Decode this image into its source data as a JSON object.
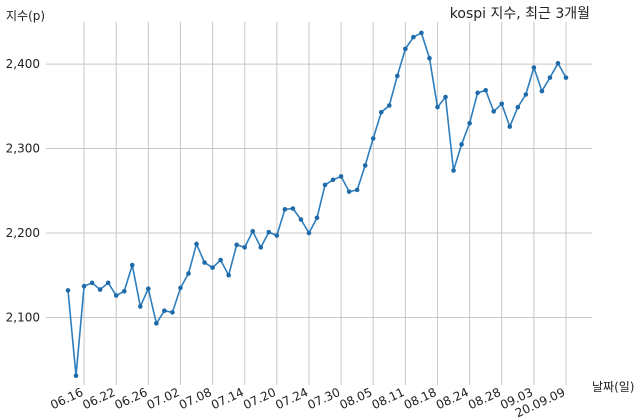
{
  "chart_data": {
    "type": "line",
    "title": "kospi 지수, 최근 3개월",
    "ylabel": "지수(p)",
    "xlabel": "날짜(일)",
    "ylim": [
      2020,
      2470
    ],
    "yticks": [
      2100,
      2200,
      2300,
      2400
    ],
    "ytick_labels": [
      "2,100",
      "2,200",
      "2,300",
      "2,400"
    ],
    "grid": true,
    "series": [
      {
        "color": "#2e7ebd",
        "values": [
          2132,
          2031,
          2137,
          2141,
          2133,
          2141,
          2126,
          2131,
          2162,
          2113,
          2134,
          2093,
          2108,
          2106,
          2135,
          2152,
          2187,
          2165,
          2159,
          2168,
          2150,
          2186,
          2183,
          2202,
          2183,
          2201,
          2197,
          2228,
          2229,
          2216,
          2200,
          2218,
          2257,
          2263,
          2267,
          2249,
          2251,
          2280,
          2312,
          2343,
          2351,
          2386,
          2418,
          2432,
          2437,
          2407,
          2349,
          2361,
          2274,
          2305,
          2330,
          2366,
          2369,
          2344,
          2353,
          2326,
          2349,
          2364,
          2396,
          2368,
          2384,
          2401,
          2384
        ]
      }
    ],
    "x_ticks": [
      {
        "index": 2,
        "label": "06.16"
      },
      {
        "index": 6,
        "label": "06.22"
      },
      {
        "index": 10,
        "label": "06.26"
      },
      {
        "index": 14,
        "label": "07.02"
      },
      {
        "index": 18,
        "label": "07.08"
      },
      {
        "index": 22,
        "label": "07.14"
      },
      {
        "index": 26,
        "label": "07.20"
      },
      {
        "index": 30,
        "label": "07.24"
      },
      {
        "index": 34,
        "label": "07.30"
      },
      {
        "index": 38,
        "label": "08.05"
      },
      {
        "index": 42,
        "label": "08.11"
      },
      {
        "index": 46,
        "label": "08.18"
      },
      {
        "index": 50,
        "label": "08.24"
      },
      {
        "index": 54,
        "label": "08.28"
      },
      {
        "index": 58,
        "label": "09.03"
      },
      {
        "index": 62,
        "label": "20.09.09"
      }
    ]
  }
}
